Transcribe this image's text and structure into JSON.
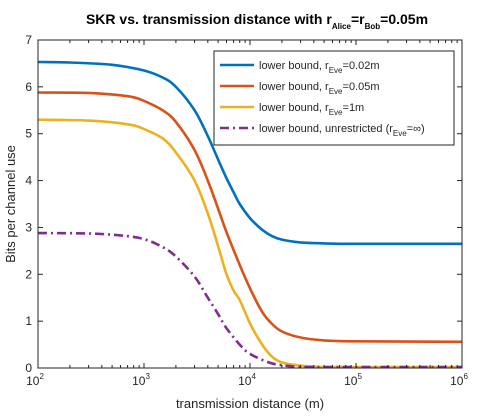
{
  "chart_data": {
    "type": "line",
    "title": {
      "main": "SKR vs. transmission distance with r",
      "sub1": "Alice",
      "mid": "=r",
      "sub2": "Bob",
      "end": "=0.05m"
    },
    "xlabel": "transmission distance (m)",
    "ylabel": "Bits per channel use",
    "x_scale": "log",
    "xlim": [
      100,
      1000000
    ],
    "ylim": [
      0,
      7
    ],
    "grid": false,
    "legend_position": "top-right",
    "x_ticks": [
      {
        "base": "10",
        "exp": "2"
      },
      {
        "base": "10",
        "exp": "3"
      },
      {
        "base": "10",
        "exp": "4"
      },
      {
        "base": "10",
        "exp": "5"
      },
      {
        "base": "10",
        "exp": "6"
      }
    ],
    "y_ticks": [
      "0",
      "1",
      "2",
      "3",
      "4",
      "5",
      "6",
      "7"
    ],
    "series": [
      {
        "label": {
          "pre": "lower bound, r",
          "sub": "Eve",
          "post": "=0.02m"
        },
        "color": "#0072BD",
        "style": "solid",
        "x": [
          100,
          200,
          500,
          1000,
          1500,
          2000,
          3000,
          4000,
          5000,
          6000,
          7000,
          8000,
          10000,
          13000,
          16000,
          20000,
          30000,
          50000,
          100000,
          1000000
        ],
        "y": [
          6.53,
          6.52,
          6.47,
          6.35,
          6.2,
          6.0,
          5.5,
          4.95,
          4.45,
          4.05,
          3.75,
          3.5,
          3.2,
          2.95,
          2.82,
          2.74,
          2.68,
          2.66,
          2.65,
          2.65
        ]
      },
      {
        "label": {
          "pre": "lower bound, r",
          "sub": "Eve",
          "post": "=0.05m"
        },
        "color": "#D95319",
        "style": "solid",
        "x": [
          100,
          300,
          700,
          1000,
          1500,
          2000,
          3000,
          4000,
          5000,
          6000,
          8000,
          10000,
          13000,
          16000,
          20000,
          30000,
          50000,
          100000,
          1000000
        ],
        "y": [
          5.88,
          5.87,
          5.8,
          5.7,
          5.5,
          5.25,
          4.65,
          4.0,
          3.4,
          2.9,
          2.2,
          1.7,
          1.2,
          0.95,
          0.78,
          0.65,
          0.59,
          0.57,
          0.56
        ]
      },
      {
        "label": {
          "pre": "lower bound, r",
          "sub": "Eve",
          "post": "=1m"
        },
        "color": "#EDB120",
        "style": "solid",
        "x": [
          100,
          300,
          700,
          1000,
          1500,
          2000,
          3000,
          4000,
          5000,
          6000,
          7000,
          8000,
          10000,
          13000,
          16000,
          20000,
          30000,
          50000,
          100000,
          1000000
        ],
        "y": [
          5.3,
          5.28,
          5.2,
          5.1,
          4.9,
          4.6,
          4.0,
          3.3,
          2.6,
          2.0,
          1.65,
          1.45,
          0.95,
          0.5,
          0.25,
          0.12,
          0.05,
          0.02,
          0.01,
          0.0
        ]
      },
      {
        "label": {
          "pre": "lower bound, unrestricted (r",
          "sub": "Eve",
          "post": "=∞)"
        },
        "color": "#7E2F8E",
        "style": "dashdot",
        "x": [
          100,
          300,
          600,
          1000,
          1500,
          2000,
          3000,
          4000,
          5000,
          6000,
          8000,
          10000,
          15000,
          20000,
          30000,
          50000,
          100000,
          1000000
        ],
        "y": [
          2.88,
          2.87,
          2.83,
          2.75,
          2.58,
          2.38,
          1.95,
          1.5,
          1.15,
          0.85,
          0.5,
          0.3,
          0.12,
          0.06,
          0.02,
          0.01,
          0.0,
          0.0
        ]
      }
    ]
  }
}
